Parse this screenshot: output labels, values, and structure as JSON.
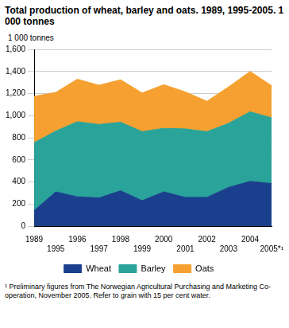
{
  "chart_data": {
    "type": "area",
    "title": "Total production of wheat, barley and oats. 1989, 1995-2005. 1 000 tonnes",
    "y_label": "1 000 tonnes",
    "footnote": "¹ Preliminary figures from The Norwegian Agricultural Purchasing and Marketing Co-operation, November 2005. Refer to grain with 15 per cent water.",
    "categories": [
      "1989",
      "1995",
      "1996",
      "1997",
      "1998",
      "1999",
      "2000",
      "2001",
      "2002",
      "2003",
      "2004",
      "2005*¹"
    ],
    "series": [
      {
        "name": "Wheat",
        "color": "#1a3f8c",
        "values": [
          140,
          310,
          265,
          255,
          320,
          230,
          310,
          260,
          260,
          350,
          405,
          385
        ]
      },
      {
        "name": "Barley",
        "color": "#2aa39a",
        "values": [
          615,
          550,
          680,
          665,
          620,
          625,
          575,
          620,
          595,
          580,
          630,
          595
        ]
      },
      {
        "name": "Oats",
        "color": "#f5a030",
        "values": [
          420,
          350,
          385,
          355,
          385,
          350,
          395,
          335,
          275,
          330,
          365,
          290
        ]
      }
    ],
    "stacked": true,
    "ylim": [
      0,
      1600
    ],
    "yticks": [
      0,
      200,
      400,
      600,
      800,
      1000,
      1200,
      1400,
      1600
    ],
    "grid": true,
    "legend": "bottom"
  }
}
